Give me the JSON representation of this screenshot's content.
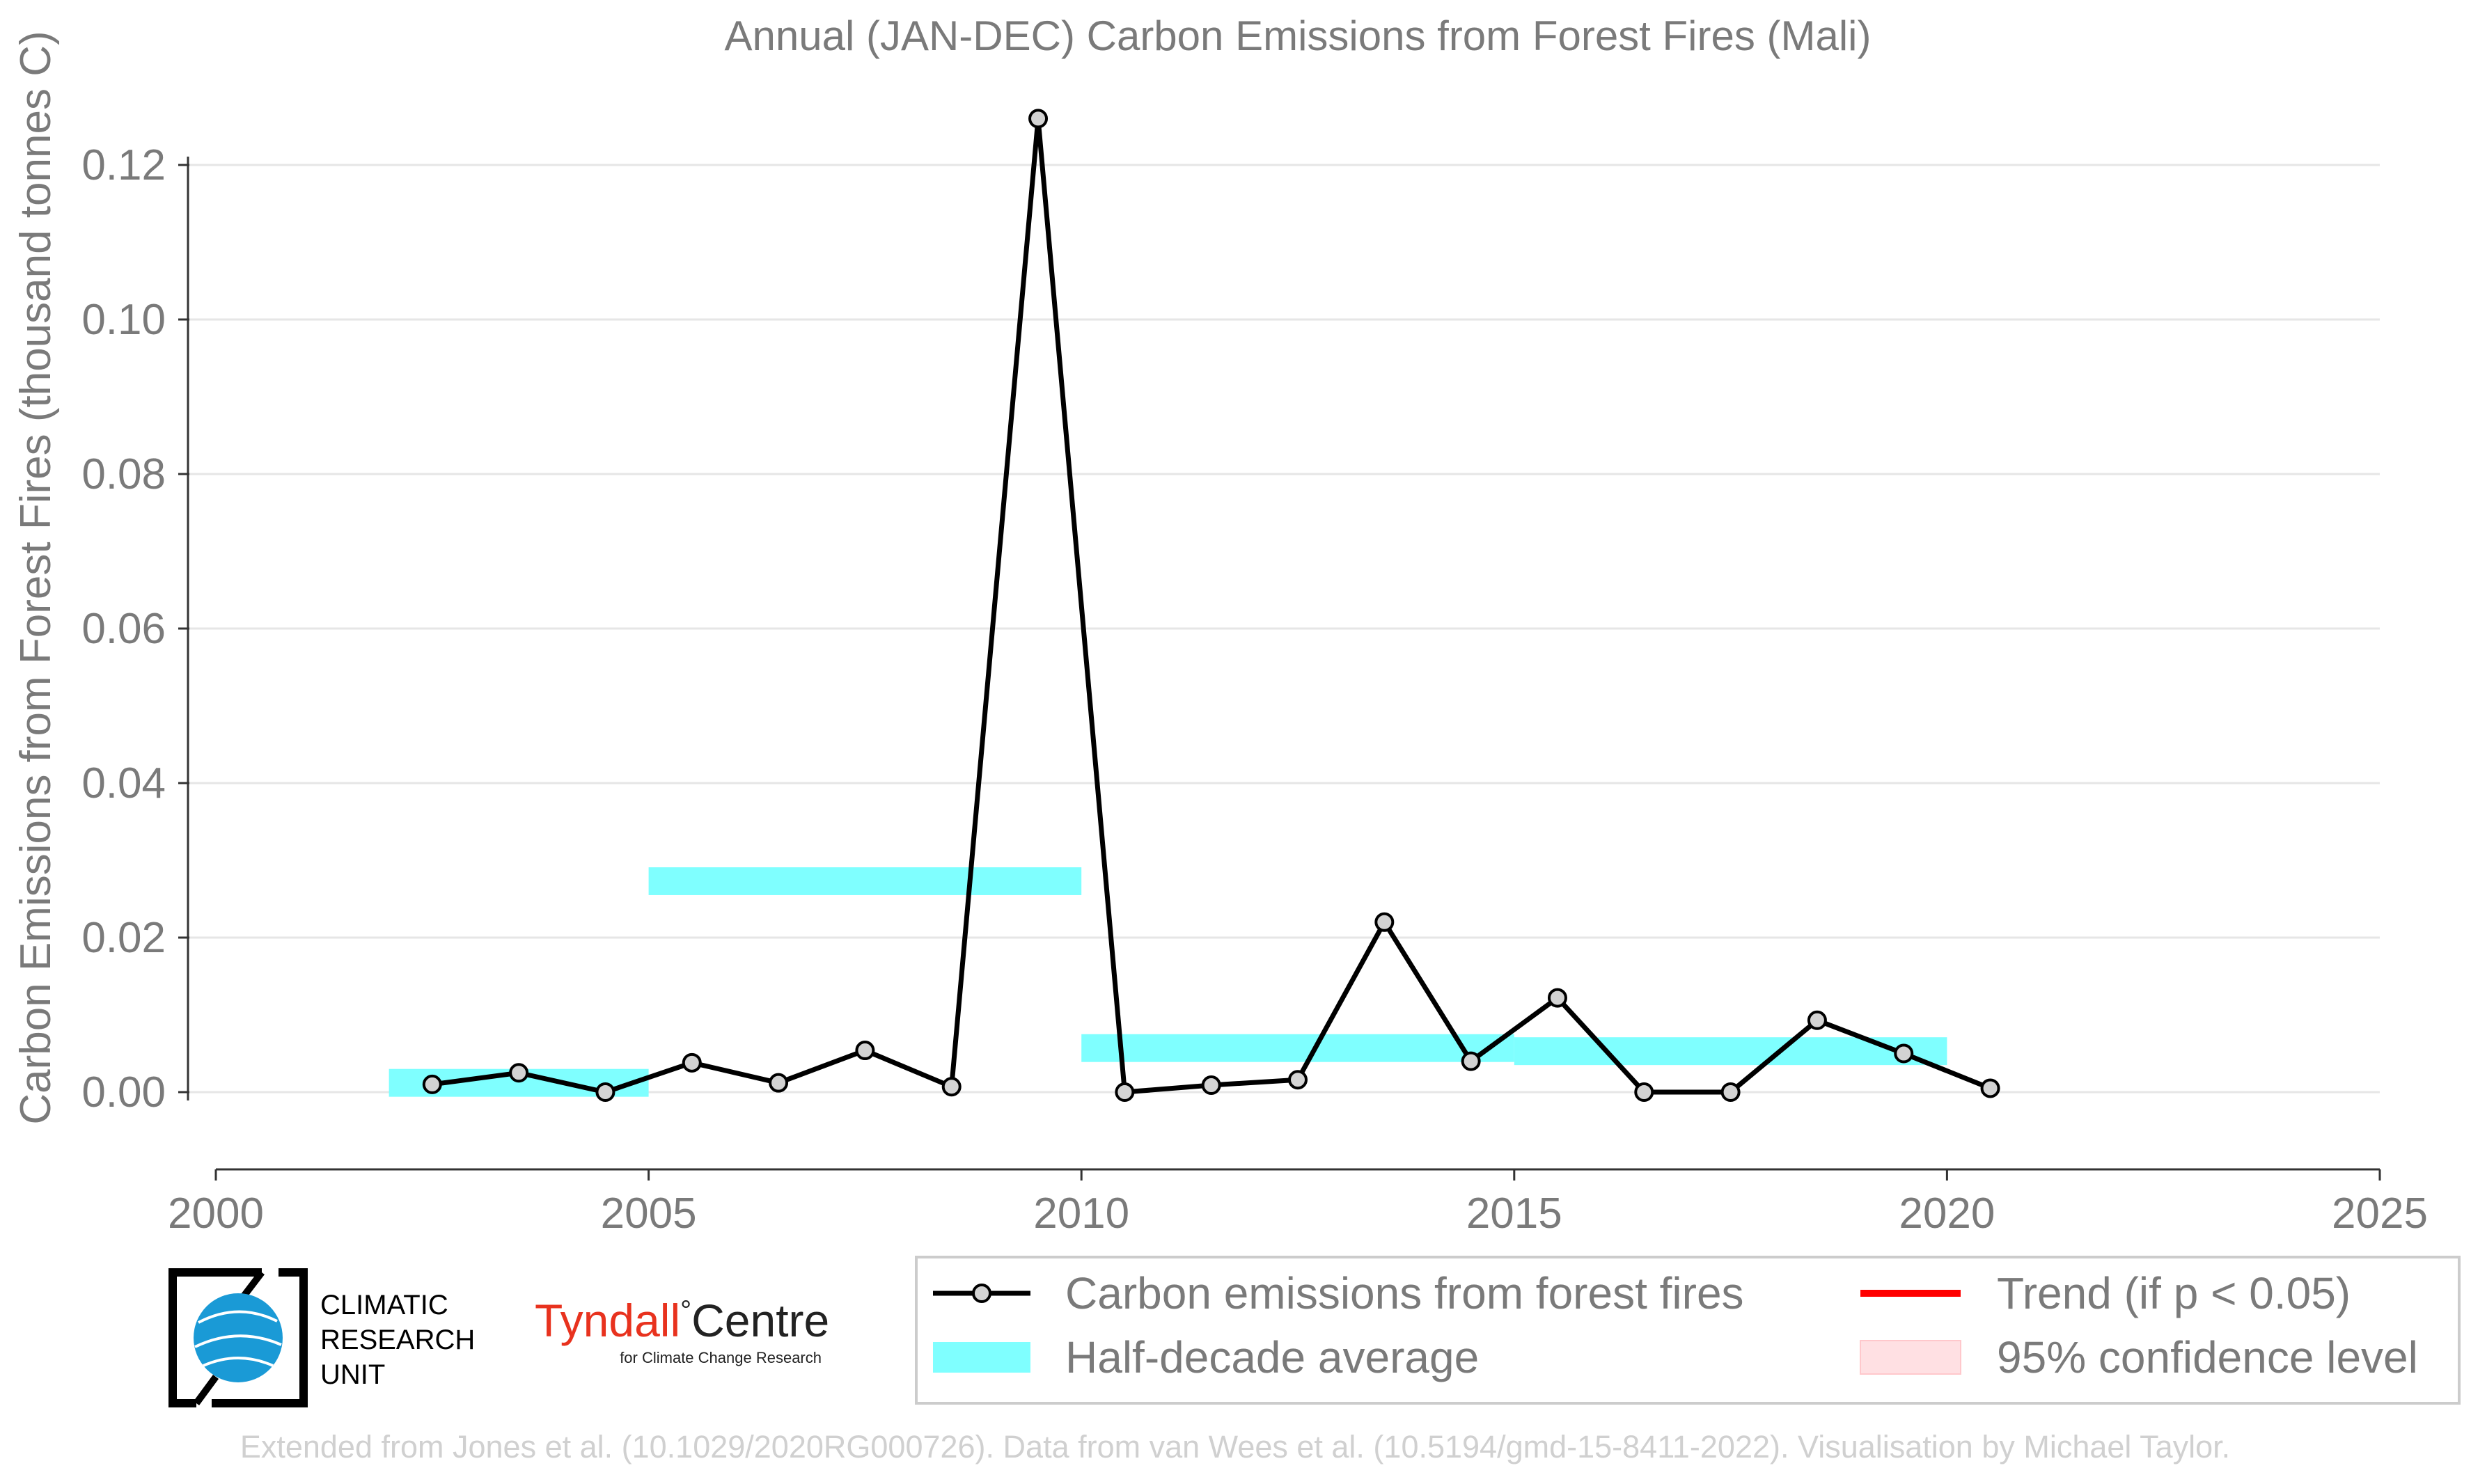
{
  "chart_data": {
    "type": "line",
    "title": "Annual (JAN-DEC) Carbon Emissions from Forest Fires (Mali)",
    "xlabel": "",
    "ylabel": "Carbon Emissions from Forest Fires (thousand tonnes C)",
    "xlim": [
      2000,
      2025
    ],
    "ylim": [
      -0.01,
      0.13
    ],
    "x_ticks": [
      "2000",
      "2005",
      "2010",
      "2015",
      "2020",
      "2025"
    ],
    "y_ticks": [
      "0.00",
      "0.02",
      "0.04",
      "0.06",
      "0.08",
      "0.10",
      "0.12"
    ],
    "grid": "horizontal",
    "series": [
      {
        "name": "Carbon emissions from forest fires",
        "color": "#000000",
        "marker_fill": "#d3d3d3",
        "x": [
          2002.5,
          2003.5,
          2004.5,
          2005.5,
          2006.5,
          2007.5,
          2008.5,
          2009.5,
          2010.5,
          2011.5,
          2012.5,
          2013.5,
          2014.5,
          2015.5,
          2016.5,
          2017.5,
          2018.5,
          2019.5,
          2020.5
        ],
        "y": [
          0.001,
          0.0025,
          0.0,
          0.0038,
          0.0012,
          0.0054,
          0.0007,
          0.126,
          0.0,
          0.0009,
          0.0016,
          0.022,
          0.004,
          0.0122,
          0.0,
          0.0,
          0.0093,
          0.005,
          0.0005
        ]
      }
    ],
    "half_decade_average": {
      "name": "Half-decade average",
      "color": "#7fffff",
      "periods": [
        {
          "x_start": 2002,
          "x_end": 2005,
          "y": 0.0012
        },
        {
          "x_start": 2005,
          "x_end": 2010,
          "y": 0.0273
        },
        {
          "x_start": 2010,
          "x_end": 2015,
          "y": 0.0057
        },
        {
          "x_start": 2015,
          "x_end": 2020,
          "y": 0.0053
        }
      ]
    },
    "legend": {
      "placement": "bottom-right",
      "entries": [
        {
          "label": "Carbon emissions from forest fires",
          "kind": "line-marker",
          "color": "#000000"
        },
        {
          "label": "Trend (if p < 0.05)",
          "kind": "line",
          "color": "#ff0000"
        },
        {
          "label": "Half-decade average",
          "kind": "band",
          "color": "#7fffff"
        },
        {
          "label": "95% confidence level",
          "kind": "band",
          "color": "#ffe0e3"
        }
      ]
    }
  },
  "logos": {
    "cru": {
      "line1": "CLIMATIC",
      "line2": "RESEARCH",
      "line3": "UNIT"
    },
    "tyndall": {
      "name_a": "Tyndall",
      "degree": "°",
      "name_b": "Centre",
      "sub": "for Climate Change Research"
    }
  },
  "footer": "Extended from Jones et al. (10.1029/2020RG000726). Data from van Wees et al. (10.5194/gmd-15-8411-2022). Visualisation by Michael Taylor."
}
